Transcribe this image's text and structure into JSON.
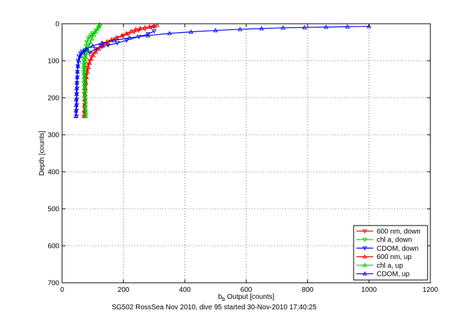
{
  "caption": "SG502 RossSea Nov 2010, dive 95 started 30-Nov-2010 17:40:25",
  "chart_data": {
    "type": "scatter",
    "title": "",
    "xlabel_main": "b",
    "xlabel_sub": "b",
    "xlabel_rest": " Output [counts]",
    "ylabel": "Depth [counts]",
    "xlim": [
      0,
      1200
    ],
    "ylim": [
      0,
      700
    ],
    "y_reversed": true,
    "x_ticks": [
      0,
      200,
      400,
      600,
      800,
      1000,
      1200
    ],
    "y_ticks": [
      0,
      100,
      200,
      300,
      400,
      500,
      600,
      700
    ],
    "grid": true,
    "legend_position": "bottom-right",
    "series": [
      {
        "name": "600 nm, down",
        "color": "#ff0000",
        "marker": "triangle-down",
        "x": [
          72,
          72,
          73,
          73,
          74,
          74,
          74,
          75,
          75,
          76,
          77,
          78,
          80,
          82,
          86,
          90,
          95,
          100,
          108,
          115,
          125,
          135,
          150,
          165,
          180,
          200,
          215,
          235,
          250,
          270,
          290,
          300
        ],
        "y": [
          250,
          240,
          230,
          220,
          210,
          200,
          190,
          180,
          170,
          160,
          150,
          140,
          130,
          120,
          110,
          100,
          90,
          82,
          75,
          68,
          60,
          54,
          48,
          42,
          38,
          32,
          28,
          22,
          18,
          14,
          10,
          8
        ]
      },
      {
        "name": "chl a, down",
        "color": "#00cc00",
        "marker": "triangle-down",
        "x": [
          75,
          75,
          74,
          74,
          73,
          73,
          72,
          72,
          72,
          71,
          71,
          71,
          70,
          70,
          70,
          70,
          72,
          74,
          76,
          78,
          80,
          85,
          90,
          95,
          100,
          110,
          118,
          125
        ],
        "y": [
          250,
          240,
          230,
          220,
          210,
          200,
          190,
          180,
          170,
          160,
          150,
          140,
          130,
          120,
          110,
          100,
          90,
          80,
          70,
          60,
          50,
          40,
          35,
          30,
          25,
          18,
          10,
          4
        ]
      },
      {
        "name": "CDOM, down",
        "color": "#0000ff",
        "marker": "triangle-down",
        "x": [
          47,
          47,
          48,
          48,
          48,
          49,
          49,
          50,
          50,
          51,
          52,
          55,
          60,
          65,
          75,
          90,
          110,
          130,
          150,
          180,
          210,
          250,
          280,
          300
        ],
        "y": [
          250,
          235,
          220,
          205,
          190,
          175,
          160,
          145,
          130,
          115,
          100,
          88,
          80,
          75,
          72,
          78,
          68,
          62,
          58,
          52,
          45,
          35,
          28,
          20
        ]
      },
      {
        "name": "600 nm, up",
        "color": "#ff0000",
        "marker": "triangle-up",
        "x": [
          72,
          72,
          73,
          74,
          75,
          76,
          78,
          80,
          83,
          86,
          90,
          95,
          102,
          110,
          120,
          132,
          145,
          160,
          178,
          195,
          210,
          225,
          240,
          255,
          270,
          285,
          300,
          310
        ],
        "y": [
          250,
          235,
          220,
          205,
          190,
          175,
          160,
          145,
          130,
          118,
          106,
          95,
          85,
          76,
          68,
          60,
          52,
          45,
          38,
          32,
          26,
          20,
          15,
          12,
          10,
          8,
          6,
          4
        ]
      },
      {
        "name": "chl a, up",
        "color": "#00cc00",
        "marker": "triangle-up",
        "x": [
          78,
          78,
          77,
          77,
          77,
          76,
          76,
          76,
          75,
          75,
          75,
          74,
          74,
          74,
          75,
          76,
          78,
          80,
          84,
          88,
          92,
          98,
          104,
          110,
          115,
          120,
          122
        ],
        "y": [
          250,
          240,
          230,
          220,
          210,
          200,
          190,
          180,
          170,
          160,
          150,
          140,
          130,
          120,
          110,
          100,
          90,
          80,
          70,
          60,
          50,
          40,
          30,
          22,
          14,
          8,
          2
        ]
      },
      {
        "name": "CDOM, up",
        "color": "#0000ff",
        "marker": "triangle-up",
        "x": [
          45,
          45,
          46,
          46,
          47,
          47,
          48,
          49,
          50,
          52,
          55,
          60,
          68,
          80,
          100,
          130,
          170,
          220,
          280,
          350,
          420,
          500,
          580,
          650,
          720,
          790,
          860,
          930,
          1000
        ],
        "y": [
          250,
          235,
          220,
          205,
          190,
          175,
          160,
          145,
          130,
          115,
          100,
          88,
          78,
          68,
          60,
          52,
          45,
          38,
          32,
          26,
          22,
          18,
          15,
          13,
          11,
          10,
          9,
          8,
          7
        ]
      }
    ]
  }
}
